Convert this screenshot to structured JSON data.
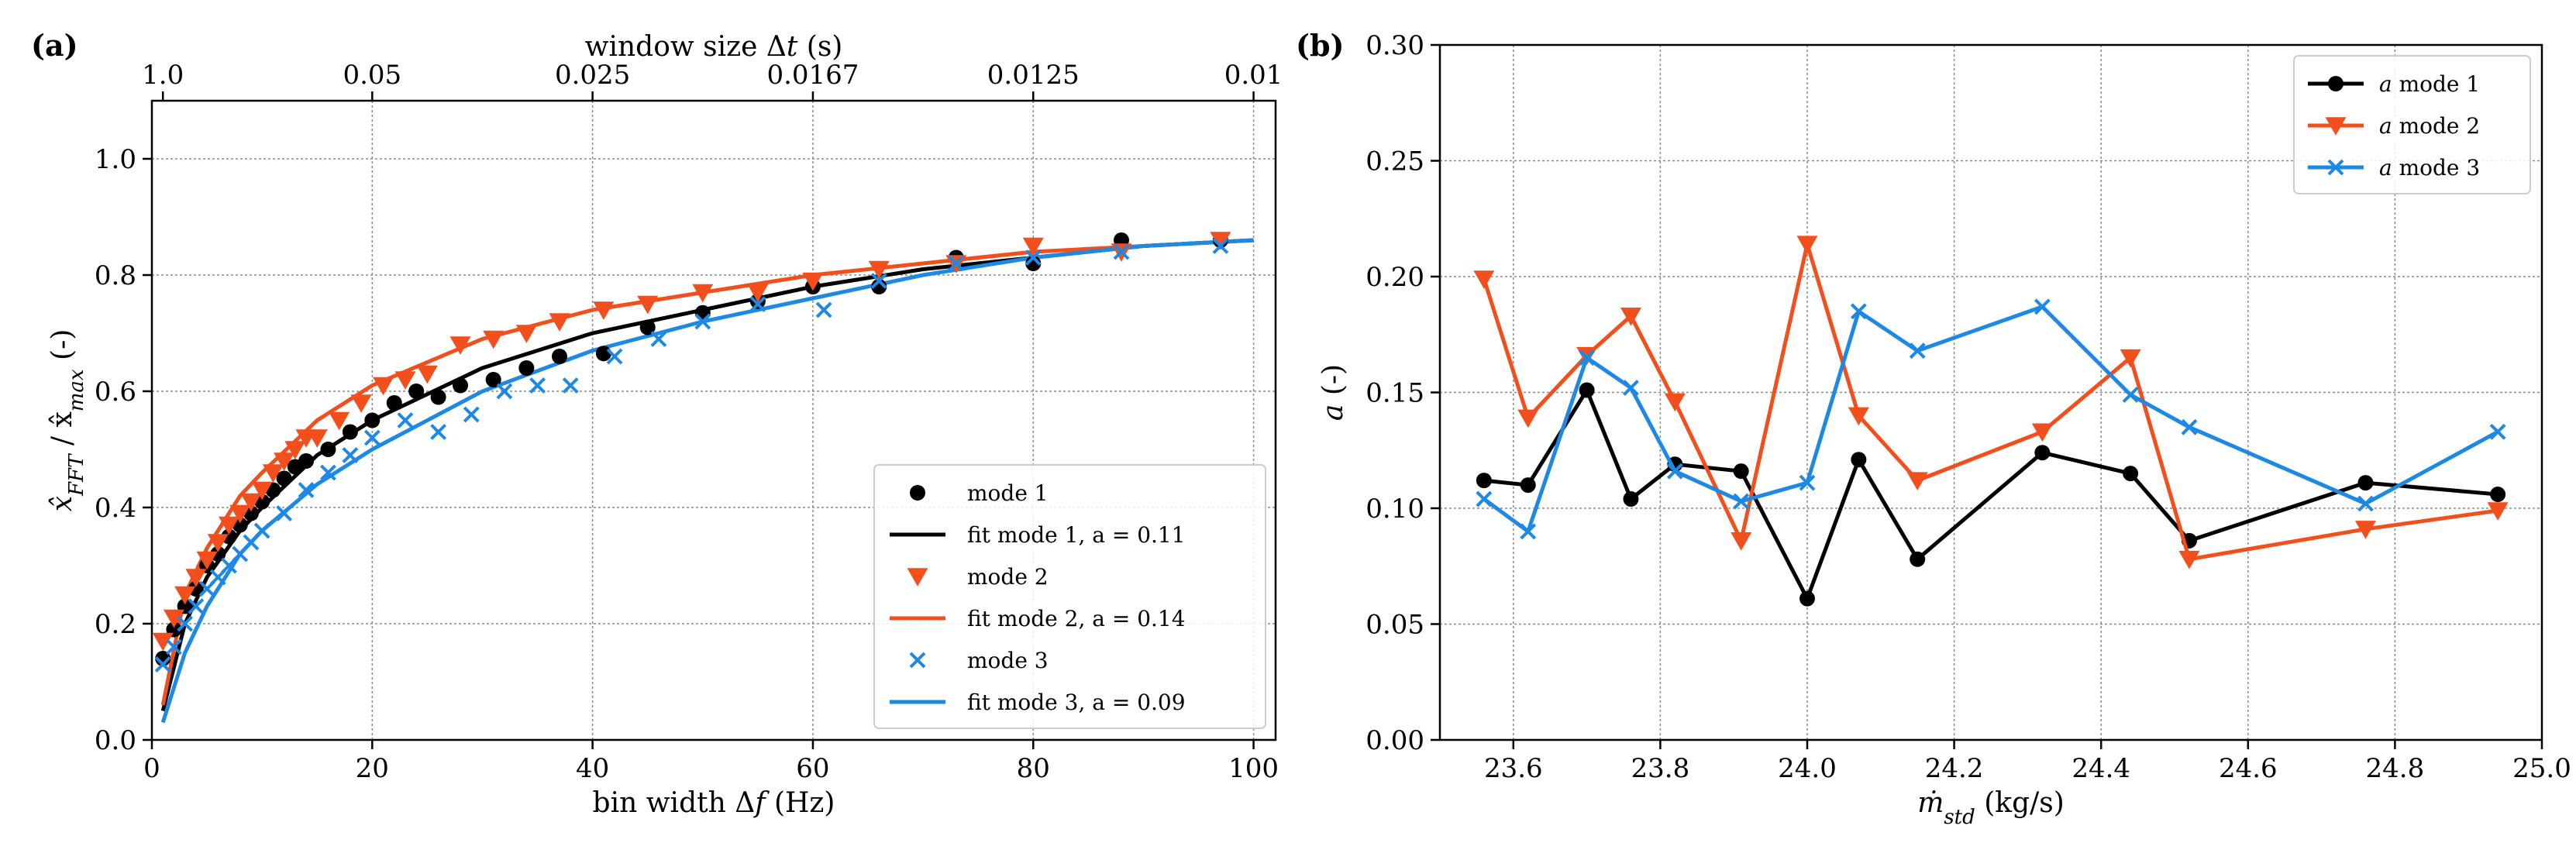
{
  "chart_data": [
    {
      "panel_label": "(a)",
      "type": "scatter",
      "xlabel": "bin width Δf  (Hz)",
      "ylabel": "x̂_FFT / x̂_max  (-)",
      "xlim": [
        0,
        102
      ],
      "ylim": [
        0,
        1.1
      ],
      "x_ticks": [
        0,
        20,
        40,
        60,
        80,
        100
      ],
      "y_ticks": [
        0.0,
        0.2,
        0.4,
        0.6,
        0.8,
        1.0
      ],
      "secondary_x": {
        "label": "window size Δt (s)",
        "ticks": [
          {
            "x": 1,
            "label": "1.0"
          },
          {
            "x": 20,
            "label": "0.05"
          },
          {
            "x": 40,
            "label": "0.025"
          },
          {
            "x": 60,
            "label": "0.0167"
          },
          {
            "x": 80,
            "label": "0.0125"
          },
          {
            "x": 100,
            "label": "0.01"
          }
        ]
      },
      "grid": true,
      "legend_position": "bottom-right",
      "series": [
        {
          "name": "mode 1",
          "kind": "markers",
          "marker": "circle",
          "color": "#000000",
          "x": [
            1,
            2,
            3,
            4,
            5,
            6,
            7,
            8,
            9,
            10,
            11,
            12,
            13,
            14,
            16,
            18,
            20,
            22,
            24,
            26,
            28,
            31,
            34,
            37,
            41,
            45,
            50,
            55,
            60,
            66,
            73,
            80,
            88,
            97
          ],
          "y": [
            0.14,
            0.19,
            0.23,
            0.26,
            0.3,
            0.32,
            0.35,
            0.37,
            0.39,
            0.41,
            0.43,
            0.45,
            0.47,
            0.48,
            0.5,
            0.53,
            0.55,
            0.58,
            0.6,
            0.59,
            0.61,
            0.62,
            0.64,
            0.66,
            0.665,
            0.71,
            0.735,
            0.755,
            0.78,
            0.78,
            0.83,
            0.82,
            0.86,
            0.86
          ]
        },
        {
          "name": "fit mode 1, a = 0.11",
          "kind": "line",
          "color": "#000000",
          "x": [
            1,
            3,
            5,
            8,
            10,
            15,
            20,
            30,
            40,
            50,
            60,
            70,
            80,
            90,
            100
          ],
          "y": [
            0.05,
            0.2,
            0.28,
            0.36,
            0.4,
            0.49,
            0.55,
            0.64,
            0.7,
            0.74,
            0.78,
            0.81,
            0.83,
            0.85,
            0.86
          ]
        },
        {
          "name": "mode 2",
          "kind": "markers",
          "marker": "triangle-down",
          "color": "#f24f1d",
          "x": [
            1,
            2,
            3,
            4,
            5,
            6,
            7,
            8,
            9,
            10,
            11,
            12,
            13,
            14,
            15,
            17,
            19,
            21,
            23,
            25,
            28,
            31,
            34,
            37,
            41,
            45,
            50,
            55,
            60,
            66,
            73,
            80,
            88,
            97
          ],
          "y": [
            0.17,
            0.21,
            0.25,
            0.28,
            0.31,
            0.34,
            0.37,
            0.39,
            0.41,
            0.43,
            0.46,
            0.48,
            0.5,
            0.52,
            0.52,
            0.55,
            0.58,
            0.61,
            0.62,
            0.63,
            0.68,
            0.69,
            0.7,
            0.72,
            0.74,
            0.75,
            0.77,
            0.77,
            0.79,
            0.81,
            0.82,
            0.85,
            0.84,
            0.86
          ]
        },
        {
          "name": "fit mode 2, a = 0.14",
          "kind": "line",
          "color": "#f24f1d",
          "x": [
            1,
            3,
            5,
            8,
            10,
            15,
            20,
            30,
            40,
            50,
            60,
            70,
            80,
            90,
            100
          ],
          "y": [
            0.06,
            0.25,
            0.33,
            0.42,
            0.46,
            0.55,
            0.61,
            0.69,
            0.74,
            0.77,
            0.8,
            0.82,
            0.84,
            0.85,
            0.86
          ]
        },
        {
          "name": "mode 3",
          "kind": "markers",
          "marker": "x",
          "color": "#1e88e5",
          "x": [
            1,
            2,
            3,
            4,
            5,
            6,
            7,
            8,
            9,
            10,
            12,
            14,
            16,
            18,
            20,
            23,
            26,
            29,
            32,
            35,
            38,
            42,
            46,
            50,
            55,
            61,
            66,
            73,
            80,
            88,
            97
          ],
          "y": [
            0.13,
            0.16,
            0.2,
            0.23,
            0.26,
            0.28,
            0.3,
            0.32,
            0.34,
            0.36,
            0.39,
            0.43,
            0.46,
            0.49,
            0.52,
            0.55,
            0.53,
            0.56,
            0.6,
            0.61,
            0.61,
            0.66,
            0.69,
            0.72,
            0.75,
            0.74,
            0.79,
            0.82,
            0.83,
            0.84,
            0.85
          ]
        },
        {
          "name": "fit mode 3, a = 0.09",
          "kind": "line",
          "color": "#1e88e5",
          "x": [
            1,
            3,
            5,
            8,
            10,
            15,
            20,
            30,
            40,
            50,
            60,
            70,
            80,
            90,
            100
          ],
          "y": [
            0.03,
            0.15,
            0.23,
            0.32,
            0.36,
            0.44,
            0.5,
            0.6,
            0.67,
            0.72,
            0.76,
            0.8,
            0.83,
            0.85,
            0.86
          ]
        }
      ]
    },
    {
      "panel_label": "(b)",
      "type": "line",
      "xlabel": "ṁ_std  (kg/s)",
      "ylabel": "a (-)",
      "xlim": [
        23.5,
        25.0
      ],
      "ylim": [
        0.0,
        0.3
      ],
      "x_ticks": [
        23.6,
        23.8,
        24.0,
        24.2,
        24.4,
        24.6,
        24.8,
        25.0
      ],
      "y_ticks": [
        0.0,
        0.05,
        0.1,
        0.15,
        0.2,
        0.25,
        0.3
      ],
      "grid": true,
      "legend_position": "top-right",
      "x": [
        23.56,
        23.62,
        23.7,
        23.76,
        23.82,
        23.91,
        24.0,
        24.07,
        24.15,
        24.32,
        24.44,
        24.52,
        24.76,
        24.94
      ],
      "series": [
        {
          "name": "a mode 1",
          "marker": "circle",
          "color": "#000000",
          "values": [
            0.112,
            0.11,
            0.151,
            0.104,
            0.119,
            0.116,
            0.061,
            0.121,
            0.078,
            0.124,
            0.115,
            0.086,
            0.111,
            0.106
          ]
        },
        {
          "name": "a mode 2",
          "marker": "triangle-down",
          "color": "#f24f1d",
          "values": [
            0.199,
            0.139,
            0.166,
            0.183,
            0.146,
            0.086,
            0.214,
            0.14,
            0.112,
            0.133,
            0.165,
            0.078,
            0.091,
            0.099
          ]
        },
        {
          "name": "a mode 3",
          "marker": "x",
          "color": "#1e88e5",
          "values": [
            0.104,
            0.09,
            0.165,
            0.152,
            0.116,
            0.103,
            0.111,
            0.185,
            0.168,
            0.187,
            0.149,
            0.135,
            0.102,
            0.133
          ]
        }
      ]
    }
  ]
}
